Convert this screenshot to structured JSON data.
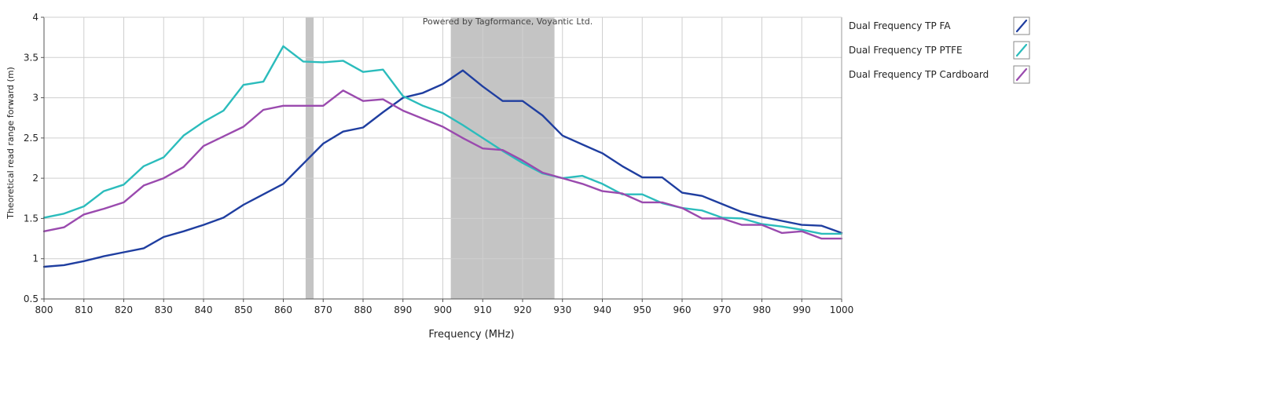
{
  "chart_data": {
    "type": "line",
    "title": "",
    "watermark": "Powered by Tagformance, Voyantic Ltd.",
    "xlabel": "Frequency (MHz)",
    "ylabel": "Theoretical read range forward (m)",
    "xlim": [
      800,
      1000
    ],
    "ylim": [
      0.5,
      4
    ],
    "x_ticks": [
      800,
      810,
      820,
      830,
      840,
      850,
      860,
      870,
      880,
      890,
      900,
      910,
      920,
      930,
      940,
      950,
      960,
      970,
      980,
      990,
      1000
    ],
    "y_ticks": [
      0.5,
      1,
      1.5,
      2,
      2.5,
      3,
      3.5,
      4
    ],
    "x_tick_labels": [
      "800",
      "810",
      "820",
      "830",
      "840",
      "850",
      "860",
      "870",
      "880",
      "890",
      "900",
      "910",
      "920",
      "930",
      "940",
      "950",
      "960",
      "970",
      "980",
      "990",
      "1000"
    ],
    "y_tick_labels": [
      "0.5",
      "1",
      "1.5",
      "2",
      "2.5",
      "3",
      "3.5",
      "4"
    ],
    "grid": true,
    "legend_position": "right",
    "bands": [
      {
        "x0": 865.6,
        "x1": 867.6,
        "color": "#c4c4c4"
      },
      {
        "x0": 902,
        "x1": 928,
        "color": "#c4c4c4"
      }
    ],
    "x": [
      800,
      805,
      810,
      815,
      820,
      825,
      830,
      835,
      840,
      845,
      850,
      855,
      860,
      865,
      870,
      875,
      880,
      885,
      890,
      895,
      900,
      905,
      910,
      915,
      920,
      925,
      930,
      935,
      940,
      945,
      950,
      955,
      960,
      965,
      970,
      975,
      980,
      985,
      990,
      995,
      1000
    ],
    "series": [
      {
        "name": "Dual Frequency TP FA",
        "color": "#1f3ea0",
        "values": [
          0.9,
          0.92,
          0.97,
          1.03,
          1.08,
          1.13,
          1.27,
          1.34,
          1.42,
          1.51,
          1.67,
          1.8,
          1.93,
          2.18,
          2.43,
          2.58,
          2.63,
          2.82,
          3.0,
          3.06,
          3.17,
          3.34,
          3.14,
          2.96,
          2.96,
          2.78,
          2.53,
          2.42,
          2.31,
          2.15,
          2.01,
          2.01,
          1.82,
          1.78,
          1.68,
          1.58,
          1.52,
          1.47,
          1.42,
          1.41,
          1.32
        ]
      },
      {
        "name": "Dual Frequency TP PTFE",
        "color": "#2bbcbc",
        "values": [
          1.51,
          1.56,
          1.65,
          1.84,
          1.92,
          2.15,
          2.26,
          2.53,
          2.7,
          2.84,
          3.16,
          3.2,
          3.64,
          3.45,
          3.44,
          3.46,
          3.32,
          3.35,
          3.02,
          2.9,
          2.81,
          2.66,
          2.5,
          2.34,
          2.19,
          2.06,
          2.0,
          2.03,
          1.93,
          1.8,
          1.8,
          1.69,
          1.63,
          1.6,
          1.51,
          1.5,
          1.43,
          1.4,
          1.36,
          1.31,
          1.31
        ]
      },
      {
        "name": "Dual Frequency TP Cardboard",
        "color": "#9a4aae",
        "values": [
          1.34,
          1.39,
          1.55,
          1.62,
          1.7,
          1.91,
          2.0,
          2.14,
          2.4,
          2.52,
          2.64,
          2.85,
          2.9,
          2.9,
          2.9,
          3.09,
          2.96,
          2.98,
          2.84,
          2.74,
          2.64,
          2.5,
          2.37,
          2.35,
          2.22,
          2.07,
          2.0,
          1.93,
          1.84,
          1.81,
          1.7,
          1.7,
          1.63,
          1.5,
          1.5,
          1.42,
          1.42,
          1.32,
          1.34,
          1.25,
          1.25
        ]
      }
    ]
  }
}
